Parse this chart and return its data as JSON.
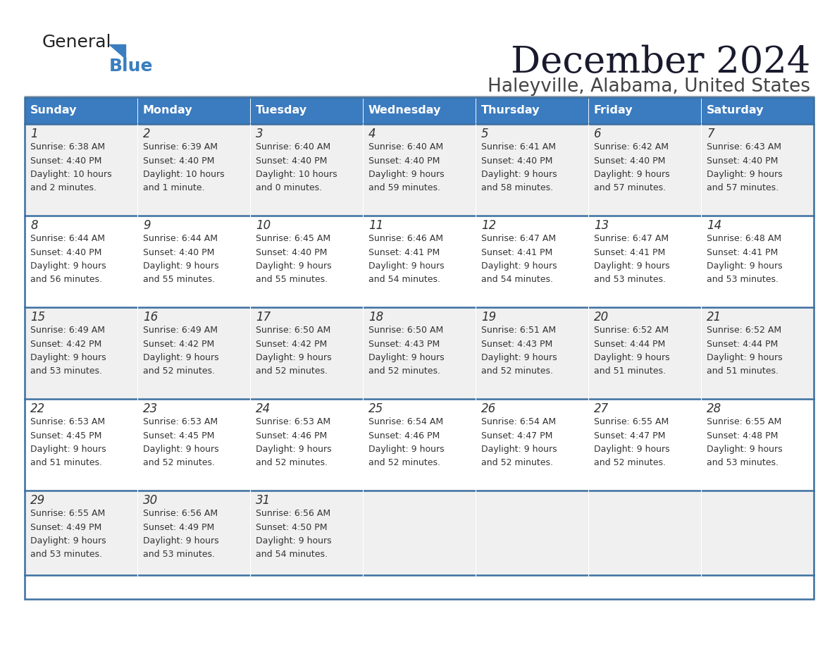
{
  "title": "December 2024",
  "subtitle": "Haleyville, Alabama, United States",
  "header_color": "#3b7bbf",
  "header_text_color": "#ffffff",
  "day_names": [
    "Sunday",
    "Monday",
    "Tuesday",
    "Wednesday",
    "Thursday",
    "Friday",
    "Saturday"
  ],
  "bg_color": "#ffffff",
  "cell_bg_even": "#f0f0f0",
  "cell_bg_odd": "#ffffff",
  "separator_color": "#3b6fa0",
  "text_color": "#333333",
  "title_color": "#1a1a2e",
  "days": [
    {
      "day": 1,
      "col": 0,
      "row": 0,
      "sunrise": "6:38 AM",
      "sunset": "4:40 PM",
      "daylight": "10 hours and 2 minutes."
    },
    {
      "day": 2,
      "col": 1,
      "row": 0,
      "sunrise": "6:39 AM",
      "sunset": "4:40 PM",
      "daylight": "10 hours and 1 minute."
    },
    {
      "day": 3,
      "col": 2,
      "row": 0,
      "sunrise": "6:40 AM",
      "sunset": "4:40 PM",
      "daylight": "10 hours and 0 minutes."
    },
    {
      "day": 4,
      "col": 3,
      "row": 0,
      "sunrise": "6:40 AM",
      "sunset": "4:40 PM",
      "daylight": "9 hours and 59 minutes."
    },
    {
      "day": 5,
      "col": 4,
      "row": 0,
      "sunrise": "6:41 AM",
      "sunset": "4:40 PM",
      "daylight": "9 hours and 58 minutes."
    },
    {
      "day": 6,
      "col": 5,
      "row": 0,
      "sunrise": "6:42 AM",
      "sunset": "4:40 PM",
      "daylight": "9 hours and 57 minutes."
    },
    {
      "day": 7,
      "col": 6,
      "row": 0,
      "sunrise": "6:43 AM",
      "sunset": "4:40 PM",
      "daylight": "9 hours and 57 minutes."
    },
    {
      "day": 8,
      "col": 0,
      "row": 1,
      "sunrise": "6:44 AM",
      "sunset": "4:40 PM",
      "daylight": "9 hours and 56 minutes."
    },
    {
      "day": 9,
      "col": 1,
      "row": 1,
      "sunrise": "6:44 AM",
      "sunset": "4:40 PM",
      "daylight": "9 hours and 55 minutes."
    },
    {
      "day": 10,
      "col": 2,
      "row": 1,
      "sunrise": "6:45 AM",
      "sunset": "4:40 PM",
      "daylight": "9 hours and 55 minutes."
    },
    {
      "day": 11,
      "col": 3,
      "row": 1,
      "sunrise": "6:46 AM",
      "sunset": "4:41 PM",
      "daylight": "9 hours and 54 minutes."
    },
    {
      "day": 12,
      "col": 4,
      "row": 1,
      "sunrise": "6:47 AM",
      "sunset": "4:41 PM",
      "daylight": "9 hours and 54 minutes."
    },
    {
      "day": 13,
      "col": 5,
      "row": 1,
      "sunrise": "6:47 AM",
      "sunset": "4:41 PM",
      "daylight": "9 hours and 53 minutes."
    },
    {
      "day": 14,
      "col": 6,
      "row": 1,
      "sunrise": "6:48 AM",
      "sunset": "4:41 PM",
      "daylight": "9 hours and 53 minutes."
    },
    {
      "day": 15,
      "col": 0,
      "row": 2,
      "sunrise": "6:49 AM",
      "sunset": "4:42 PM",
      "daylight": "9 hours and 53 minutes."
    },
    {
      "day": 16,
      "col": 1,
      "row": 2,
      "sunrise": "6:49 AM",
      "sunset": "4:42 PM",
      "daylight": "9 hours and 52 minutes."
    },
    {
      "day": 17,
      "col": 2,
      "row": 2,
      "sunrise": "6:50 AM",
      "sunset": "4:42 PM",
      "daylight": "9 hours and 52 minutes."
    },
    {
      "day": 18,
      "col": 3,
      "row": 2,
      "sunrise": "6:50 AM",
      "sunset": "4:43 PM",
      "daylight": "9 hours and 52 minutes."
    },
    {
      "day": 19,
      "col": 4,
      "row": 2,
      "sunrise": "6:51 AM",
      "sunset": "4:43 PM",
      "daylight": "9 hours and 52 minutes."
    },
    {
      "day": 20,
      "col": 5,
      "row": 2,
      "sunrise": "6:52 AM",
      "sunset": "4:44 PM",
      "daylight": "9 hours and 51 minutes."
    },
    {
      "day": 21,
      "col": 6,
      "row": 2,
      "sunrise": "6:52 AM",
      "sunset": "4:44 PM",
      "daylight": "9 hours and 51 minutes."
    },
    {
      "day": 22,
      "col": 0,
      "row": 3,
      "sunrise": "6:53 AM",
      "sunset": "4:45 PM",
      "daylight": "9 hours and 51 minutes."
    },
    {
      "day": 23,
      "col": 1,
      "row": 3,
      "sunrise": "6:53 AM",
      "sunset": "4:45 PM",
      "daylight": "9 hours and 52 minutes."
    },
    {
      "day": 24,
      "col": 2,
      "row": 3,
      "sunrise": "6:53 AM",
      "sunset": "4:46 PM",
      "daylight": "9 hours and 52 minutes."
    },
    {
      "day": 25,
      "col": 3,
      "row": 3,
      "sunrise": "6:54 AM",
      "sunset": "4:46 PM",
      "daylight": "9 hours and 52 minutes."
    },
    {
      "day": 26,
      "col": 4,
      "row": 3,
      "sunrise": "6:54 AM",
      "sunset": "4:47 PM",
      "daylight": "9 hours and 52 minutes."
    },
    {
      "day": 27,
      "col": 5,
      "row": 3,
      "sunrise": "6:55 AM",
      "sunset": "4:47 PM",
      "daylight": "9 hours and 52 minutes."
    },
    {
      "day": 28,
      "col": 6,
      "row": 3,
      "sunrise": "6:55 AM",
      "sunset": "4:48 PM",
      "daylight": "9 hours and 53 minutes."
    },
    {
      "day": 29,
      "col": 0,
      "row": 4,
      "sunrise": "6:55 AM",
      "sunset": "4:49 PM",
      "daylight": "9 hours and 53 minutes."
    },
    {
      "day": 30,
      "col": 1,
      "row": 4,
      "sunrise": "6:56 AM",
      "sunset": "4:49 PM",
      "daylight": "9 hours and 53 minutes."
    },
    {
      "day": 31,
      "col": 2,
      "row": 4,
      "sunrise": "6:56 AM",
      "sunset": "4:50 PM",
      "daylight": "9 hours and 54 minutes."
    }
  ],
  "logo_text1": "General",
  "logo_text2": "Blue",
  "logo_color1": "#222222",
  "logo_color2": "#3a7ebf",
  "logo_triangle_color": "#3a7ebf"
}
